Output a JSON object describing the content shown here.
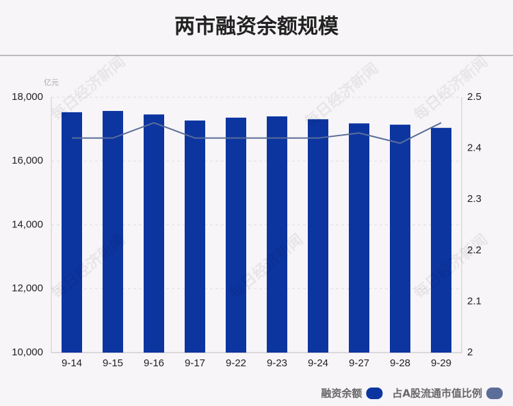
{
  "chart_data": {
    "type": "bar",
    "title": "两市融资余额规模",
    "y_unit": "亿元",
    "watermark": "每日经济新闻",
    "categories": [
      "9-14",
      "9-15",
      "9-16",
      "9-17",
      "9-22",
      "9-23",
      "9-24",
      "9-27",
      "9-28",
      "9-29"
    ],
    "series": [
      {
        "name": "融资余额",
        "type": "bar",
        "color": "#0c35a0",
        "values": [
          17530,
          17570,
          17460,
          17270,
          17360,
          17400,
          17310,
          17180,
          17140,
          17040
        ]
      },
      {
        "name": "占A股流通市值比例",
        "type": "line",
        "axis": "y2",
        "color": "#5a6e99",
        "values": [
          2.42,
          2.42,
          2.45,
          2.42,
          2.42,
          2.42,
          2.42,
          2.43,
          2.41,
          2.45
        ]
      }
    ],
    "ylim": [
      10000,
      18000
    ],
    "yticks": [
      {
        "value": 10000,
        "label": "10,000"
      },
      {
        "value": 12000,
        "label": "12,000"
      },
      {
        "value": 14000,
        "label": "14,000"
      },
      {
        "value": 16000,
        "label": "16,000"
      },
      {
        "value": 18000,
        "label": "18,000"
      }
    ],
    "y2lim": [
      2,
      2.5
    ],
    "y2ticks": [
      2,
      2.1,
      2.2,
      2.3,
      2.4,
      2.5
    ],
    "grid": true
  }
}
